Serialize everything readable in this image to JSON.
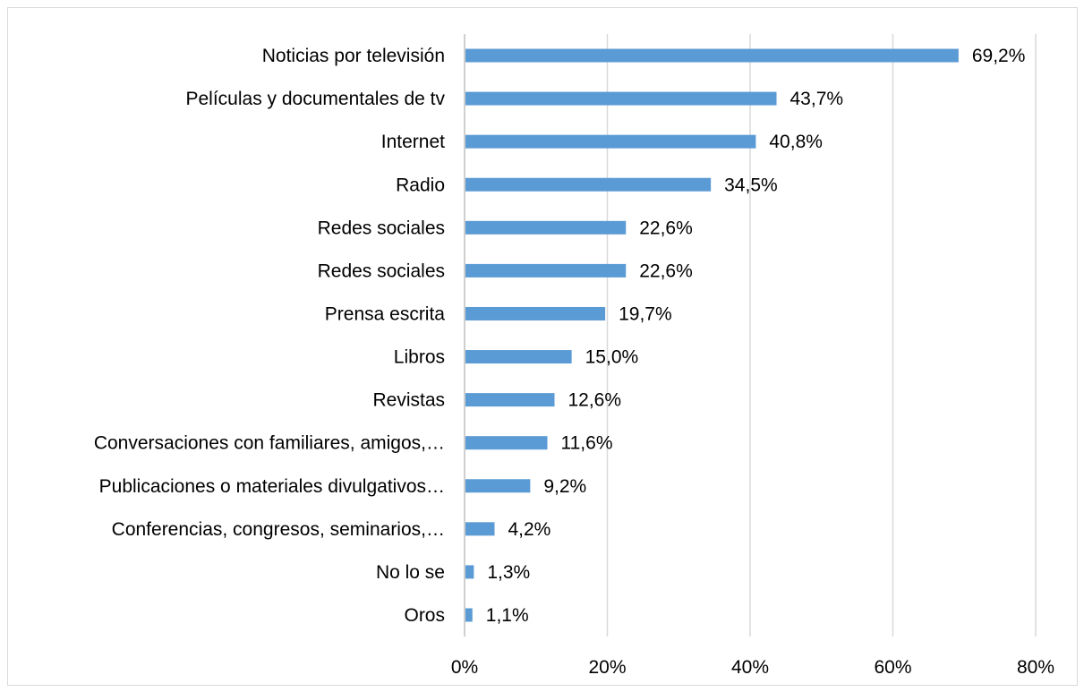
{
  "chart_data": {
    "type": "bar",
    "orientation": "horizontal",
    "categories": [
      "Noticias por televisión",
      "Películas y documentales de tv",
      "Internet",
      "Radio",
      "Redes sociales",
      "Redes sociales",
      "Prensa escrita",
      "Libros",
      "Revistas",
      "Conversaciones con familiares, amigos,…",
      "Publicaciones o materiales divulgativos…",
      "Conferencias, congresos, seminarios,…",
      "No lo se",
      "Oros"
    ],
    "values": [
      69.2,
      43.7,
      40.8,
      34.5,
      22.6,
      22.6,
      19.7,
      15.0,
      12.6,
      11.6,
      9.2,
      4.2,
      1.3,
      1.1
    ],
    "data_labels": [
      "69,2%",
      "43,7%",
      "40,8%",
      "34,5%",
      "22,6%",
      "22,6%",
      "19,7%",
      "15,0%",
      "12,6%",
      "11,6%",
      "9,2%",
      "4,2%",
      "1,3%",
      "1,1%"
    ],
    "xlim": [
      0,
      80
    ],
    "xticks": [
      0,
      20,
      40,
      60,
      80
    ],
    "xtick_labels": [
      "0%",
      "20%",
      "40%",
      "60%",
      "80%"
    ],
    "title": "",
    "xlabel": "",
    "ylabel": "",
    "grid": "vertical",
    "legend": "none",
    "colors": {
      "bar": "#5b9bd5",
      "grid": "#d9d9d9",
      "text": "#000000"
    }
  }
}
